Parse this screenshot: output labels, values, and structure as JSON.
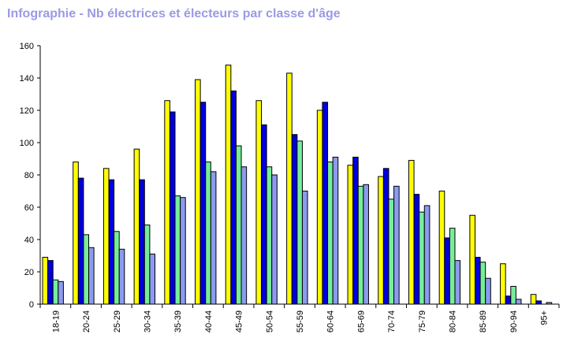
{
  "chart_data": {
    "type": "bar",
    "title": "Infographie - Nb électrices et électeurs par classe d'âge",
    "xlabel": "",
    "ylabel": "",
    "ylim": [
      0,
      160
    ],
    "yticks": [
      0,
      20,
      40,
      60,
      80,
      100,
      120,
      140,
      160
    ],
    "grid": false,
    "legend": "none",
    "categories": [
      "18-19",
      "20-24",
      "25-29",
      "30-34",
      "35-39",
      "40-44",
      "45-49",
      "50-54",
      "55-59",
      "60-64",
      "65-69",
      "70-74",
      "75-79",
      "80-84",
      "85-89",
      "90-94",
      "95+"
    ],
    "series": [
      {
        "color": "#ffff00",
        "values": [
          29,
          88,
          84,
          96,
          126,
          139,
          148,
          126,
          143,
          120,
          86,
          79,
          89,
          70,
          55,
          25,
          6
        ]
      },
      {
        "color": "#0000dd",
        "values": [
          27,
          78,
          77,
          77,
          119,
          125,
          132,
          111,
          105,
          125,
          91,
          84,
          68,
          41,
          29,
          5,
          2
        ]
      },
      {
        "color": "#77ee99",
        "values": [
          15,
          43,
          45,
          49,
          67,
          88,
          98,
          85,
          101,
          88,
          73,
          65,
          57,
          47,
          26,
          11,
          0
        ]
      },
      {
        "color": "#8b9bef",
        "values": [
          14,
          35,
          34,
          31,
          66,
          82,
          85,
          80,
          70,
          91,
          74,
          73,
          61,
          27,
          16,
          3,
          1
        ]
      }
    ]
  }
}
